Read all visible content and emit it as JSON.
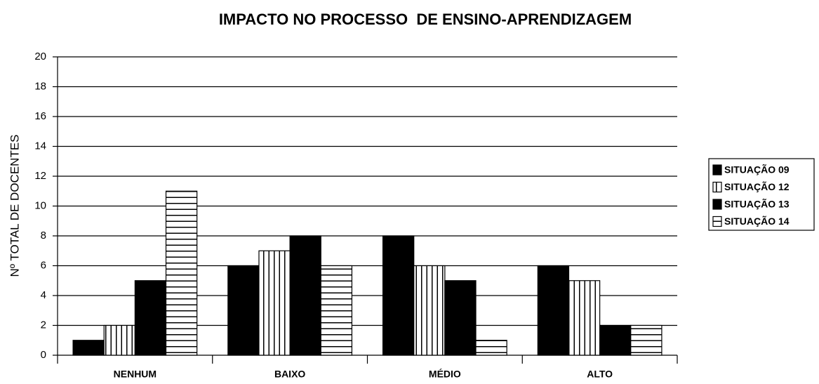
{
  "chart_data": {
    "type": "bar",
    "title": "IMPACTO NO PROCESSO  DE ENSINO-APRENDIZAGEM",
    "ylabel": "Nº TOTAL DE DOCENTES",
    "categories": [
      "NENHUM",
      "BAIXO",
      "MÉDIO",
      "ALTO"
    ],
    "series": [
      {
        "name": "SITUAÇÃO 09",
        "color": "#000000",
        "pattern": "solid",
        "values": [
          1,
          6,
          8,
          6
        ]
      },
      {
        "name": "SITUAÇÃO 12",
        "color": "#000000",
        "pattern": "vertical",
        "values": [
          2,
          7,
          6,
          5
        ]
      },
      {
        "name": "SITUAÇÃO 13",
        "color": "#000000",
        "pattern": "solid",
        "values": [
          5,
          8,
          5,
          2
        ]
      },
      {
        "name": "SITUAÇÃO 14",
        "color": "#000000",
        "pattern": "horizontal",
        "values": [
          11,
          6,
          1,
          2
        ]
      }
    ],
    "ylim": [
      0,
      20
    ],
    "yticks": [
      0,
      2,
      4,
      6,
      8,
      10,
      12,
      14,
      16,
      18,
      20
    ],
    "grid": true,
    "legend": "right"
  }
}
